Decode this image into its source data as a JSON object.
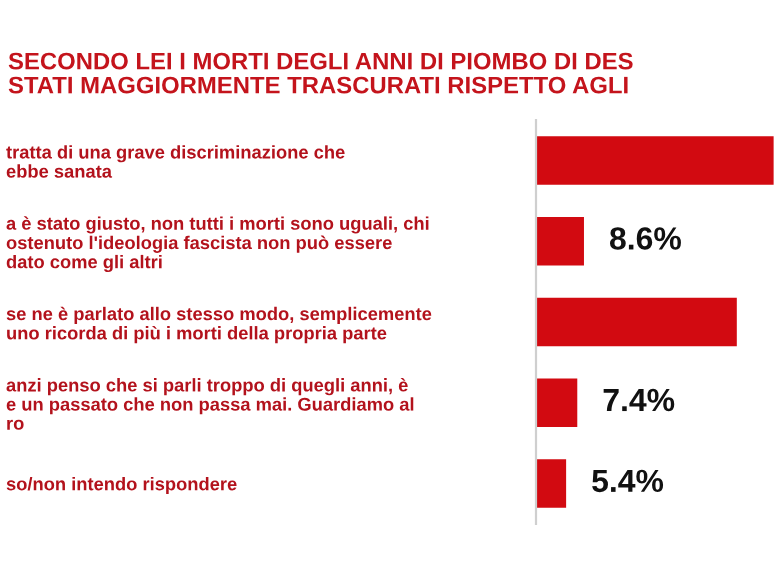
{
  "chart_data": {
    "type": "bar",
    "orientation": "horizontal",
    "title": "SECONDO LEI I MORTI DEGLI ANNI DI PIOMBO DI DES\nSTATI MAGGIORMENTE TRASCURATI RISPETTO AGLI",
    "categories": [
      "tratta di una grave discriminazione che\nebbe sanata",
      "a è stato giusto, non tutti i morti sono uguali, chi\nostenuto l'ideologia fascista non può essere\ndato come gli altri",
      "se ne è parlato allo stesso modo, semplicemente\nuno ricorda di più i morti della propria parte",
      "anzi penso che si parli troppo di quegli anni, è\ne un passato che non passa mai. Guardiamo al\nro",
      "so/non intendo rispondere"
    ],
    "values": [
      42.6,
      8.6,
      36.0,
      7.4,
      5.4
    ],
    "value_labels": [
      null,
      "8.6%",
      null,
      "7.4%",
      "5.4%"
    ],
    "color": "#d20a11",
    "grid": false,
    "legend": false
  }
}
